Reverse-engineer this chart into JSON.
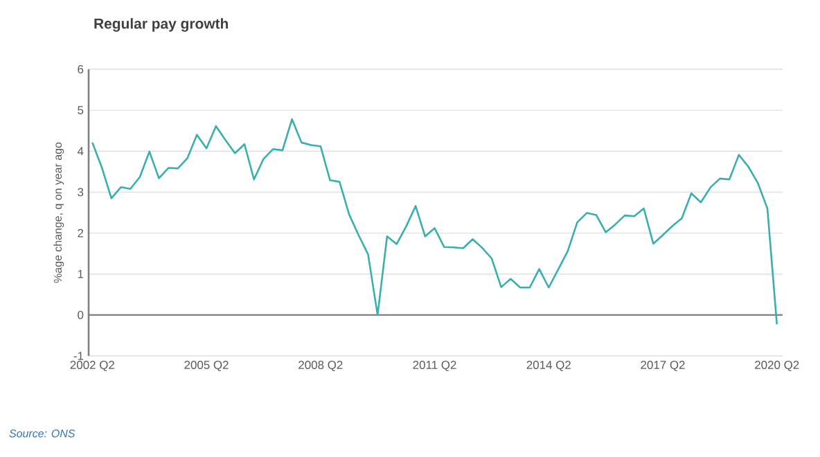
{
  "chart_data": {
    "type": "line",
    "title": "Regular pay growth",
    "ylabel": "%age change, q on year ago",
    "categories": [
      "2002 Q2",
      null,
      null,
      null,
      null,
      null,
      null,
      null,
      null,
      null,
      null,
      null,
      "2005 Q2",
      null,
      null,
      null,
      null,
      null,
      null,
      null,
      null,
      null,
      null,
      null,
      "2008 Q2",
      null,
      null,
      null,
      null,
      null,
      null,
      null,
      null,
      null,
      null,
      null,
      "2011 Q2",
      null,
      null,
      null,
      null,
      null,
      null,
      null,
      null,
      null,
      null,
      null,
      "2014 Q2",
      null,
      null,
      null,
      null,
      null,
      null,
      null,
      null,
      null,
      null,
      null,
      "2017 Q2",
      null,
      null,
      null,
      null,
      null,
      null,
      null,
      null,
      null,
      null,
      null,
      "2020 Q2"
    ],
    "values": [
      4.21,
      3.6,
      2.85,
      3.12,
      3.08,
      3.37,
      3.99,
      3.34,
      3.59,
      3.58,
      3.83,
      4.4,
      4.07,
      4.61,
      4.27,
      3.95,
      4.17,
      3.31,
      3.81,
      4.05,
      4.02,
      4.78,
      4.21,
      4.15,
      4.12,
      3.29,
      3.25,
      2.46,
      1.95,
      1.48,
      0.0,
      1.92,
      1.73,
      2.16,
      2.66,
      1.92,
      2.12,
      1.66,
      1.65,
      1.63,
      1.85,
      1.64,
      1.38,
      0.68,
      0.88,
      0.67,
      0.67,
      1.12,
      0.67,
      1.11,
      1.56,
      2.26,
      2.49,
      2.44,
      2.02,
      2.21,
      2.43,
      2.41,
      2.6,
      1.74,
      1.95,
      2.17,
      2.36,
      2.97,
      2.75,
      3.11,
      3.33,
      3.31,
      3.91,
      3.62,
      3.22,
      2.6,
      -0.23
    ],
    "color": "#37aeb0",
    "ylim": [
      -1,
      6
    ],
    "yticks": [
      -1,
      0,
      1,
      2,
      3,
      4,
      5,
      6
    ],
    "grid": "y",
    "annotations": [
      "Source: ONS"
    ]
  }
}
